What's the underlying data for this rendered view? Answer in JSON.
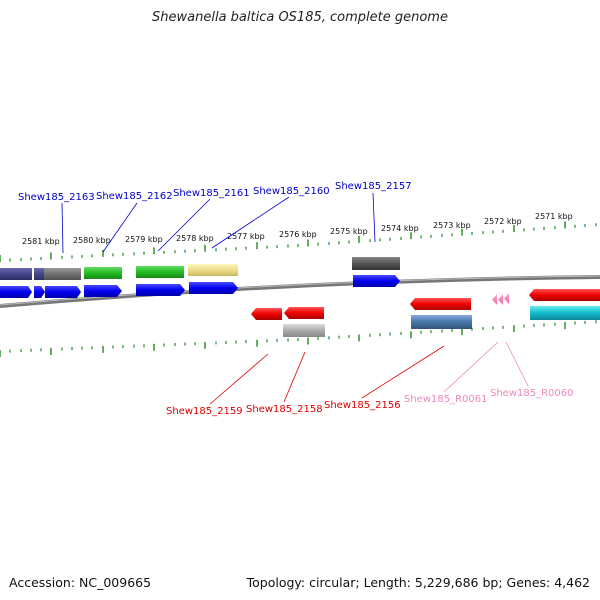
{
  "title": "Shewanella baltica OS185, complete genome",
  "footer": {
    "accession": "Accession: NC_009665",
    "summary": "Topology: circular; Length: 5,229,686 bp; Genes: 4,462"
  },
  "kbp_labels": [
    "2581 kbp",
    "2580 kbp",
    "2579 kbp",
    "2578 kbp",
    "2577 kbp",
    "2576 kbp",
    "2575 kbp",
    "2574 kbp",
    "2573 kbp",
    "2572 kbp",
    "2571 kbp"
  ],
  "gene_labels_top": [
    "Shew185_2163",
    "Shew185_2162",
    "Shew185_2161",
    "Shew185_2160",
    "Shew185_2157"
  ],
  "gene_labels_bottom": [
    "Shew185_2159",
    "Shew185_2158",
    "Shew185_2156",
    "Shew185_R0061",
    "Shew185_R0060"
  ],
  "colors": {
    "forward_cds": "#0000ee",
    "reverse_cds": "#ee0000",
    "forward_label": "#0000cc",
    "reverse_label": "#dd0000",
    "rna_label": "#ee88bb",
    "tick": "#228822",
    "backbone": "#777777"
  }
}
